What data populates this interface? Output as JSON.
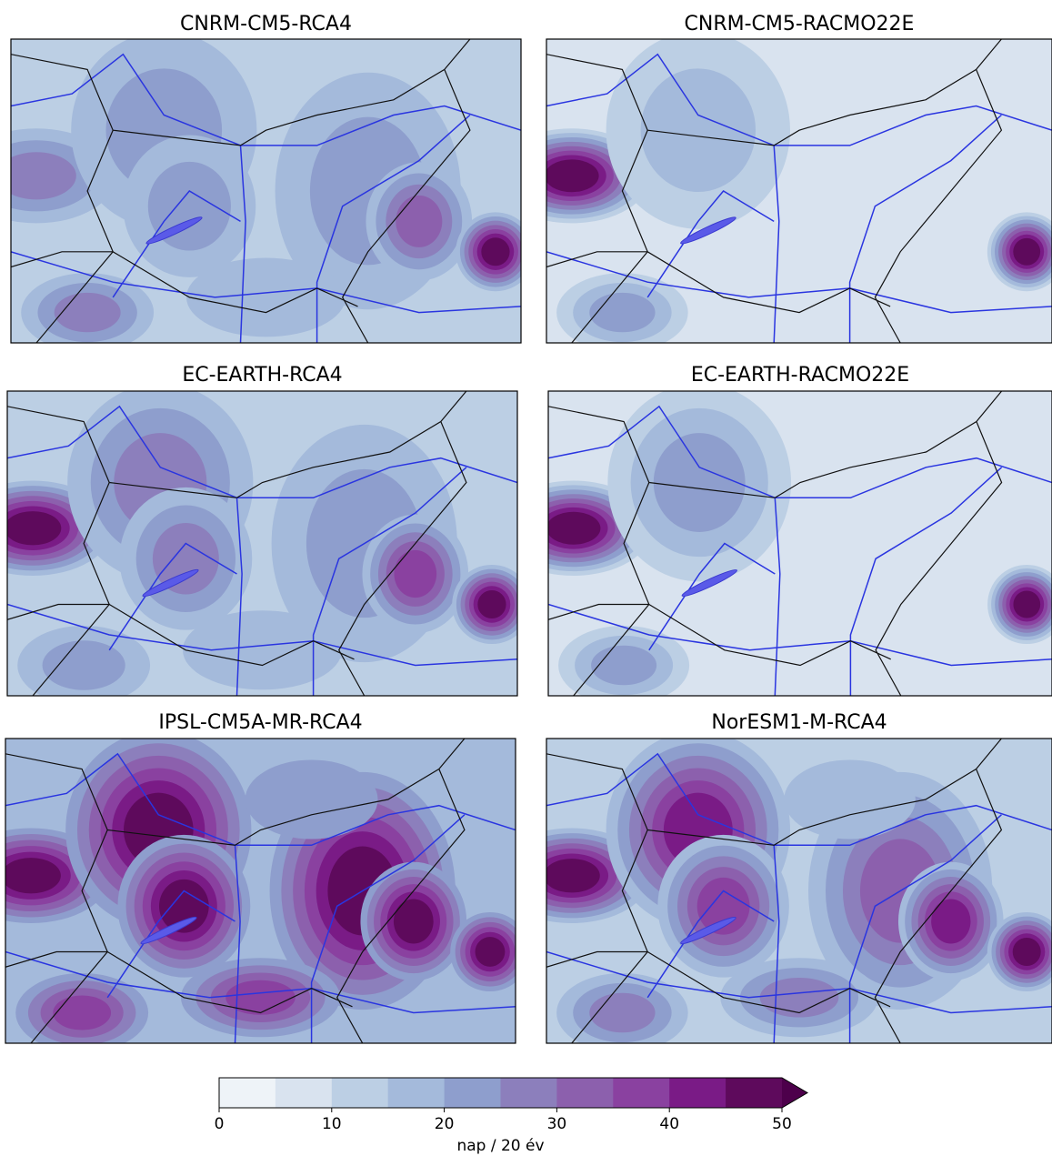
{
  "panels": [
    {
      "title": "CNRM-CM5-RCA4"
    },
    {
      "title": "CNRM-CM5-RACMO22E"
    },
    {
      "title": "EC-EARTH-RCA4"
    },
    {
      "title": "EC-EARTH-RACMO22E"
    },
    {
      "title": "IPSL-CM5A-MR-RCA4"
    },
    {
      "title": "NorESM1-M-RCA4"
    }
  ],
  "colorbar": {
    "levels": [
      0,
      5,
      10,
      15,
      20,
      25,
      30,
      35,
      40,
      45,
      50
    ],
    "colors": [
      "#eef3f8",
      "#d9e3ef",
      "#bccfe4",
      "#a4badb",
      "#8e9ecd",
      "#8c7fbc",
      "#8c60ad",
      "#8a41a0",
      "#7a1b86",
      "#5e0a5c"
    ],
    "over_color": "#4d004b",
    "ticks": [
      0,
      10,
      20,
      30,
      40,
      50
    ],
    "label": "nap / 20 év"
  }
}
